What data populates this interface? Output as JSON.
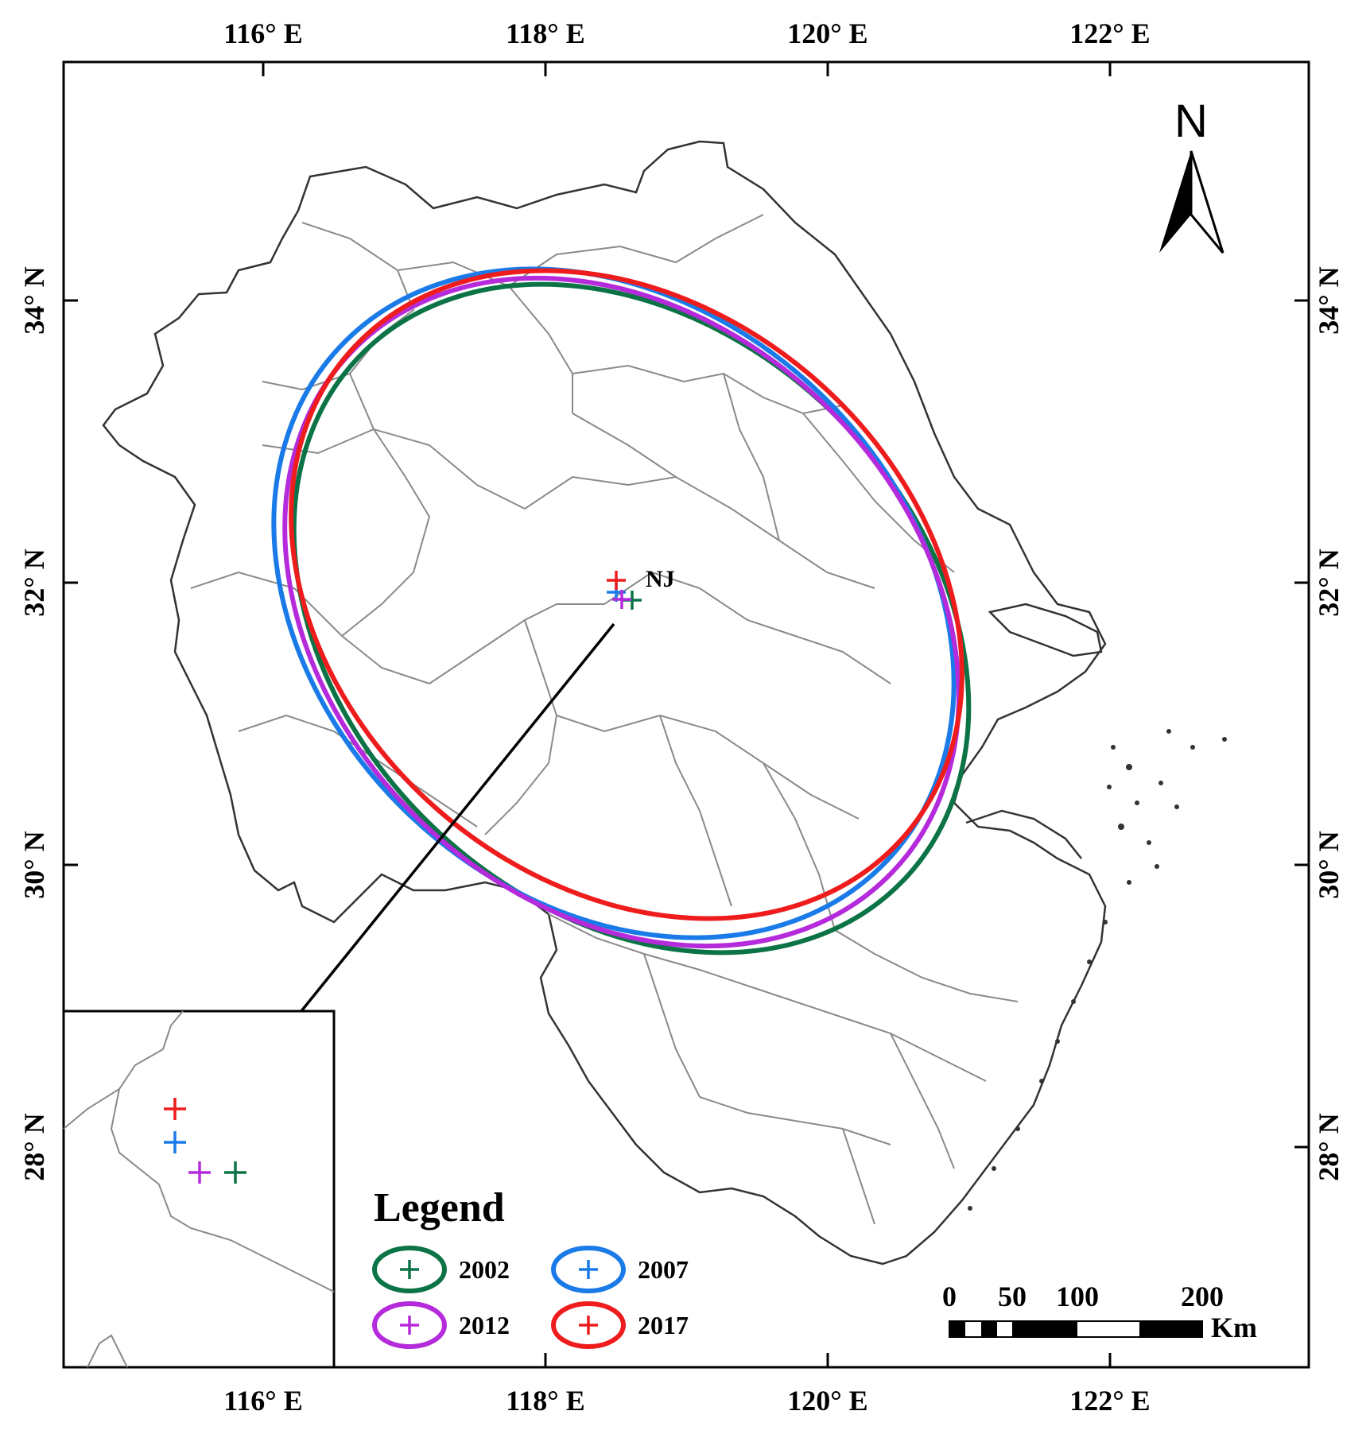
{
  "map": {
    "longitude_labels": [
      "116° E",
      "118° E",
      "120° E",
      "122° E"
    ],
    "latitude_labels": [
      "34° N",
      "32° N",
      "30° N",
      "28° N"
    ],
    "north_label": "N",
    "city_label": "NJ"
  },
  "legend": {
    "title": "Legend",
    "items": [
      {
        "year": "2002",
        "color": "#0b7345"
      },
      {
        "year": "2007",
        "color": "#1a7be8"
      },
      {
        "year": "2012",
        "color": "#b52bdc"
      },
      {
        "year": "2017",
        "color": "#ee1c1c"
      }
    ]
  },
  "scale_bar": {
    "labels": [
      "0",
      "50",
      "100",
      "200"
    ],
    "unit": "Km"
  }
}
